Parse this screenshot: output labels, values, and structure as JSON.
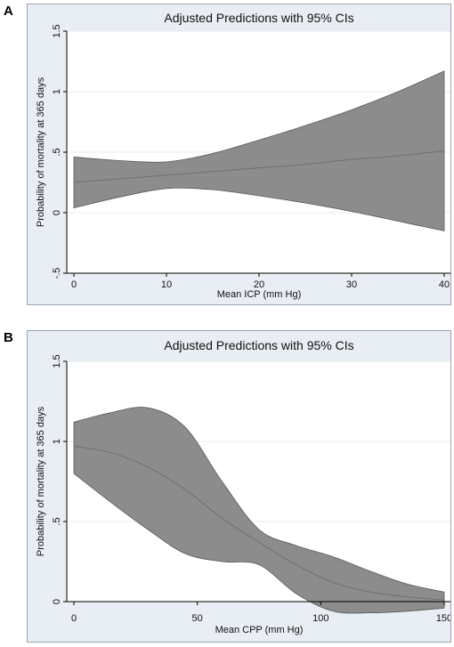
{
  "panels": [
    {
      "letter": "A"
    },
    {
      "letter": "B"
    }
  ],
  "chart_data": [
    {
      "type": "line",
      "title": "Adjusted Predictions with 95% CIs",
      "xlabel": "Mean ICP (mm Hg)",
      "ylabel": "Probability of mortality at 365 days",
      "xlim": [
        0,
        40
      ],
      "ylim": [
        -0.5,
        1.5
      ],
      "xticks": [
        0,
        10,
        20,
        30,
        40
      ],
      "xtick_labels": [
        "0",
        "10",
        "20",
        "30",
        "40"
      ],
      "yticks": [
        -0.5,
        0,
        0.5,
        1,
        1.5
      ],
      "ytick_labels": [
        "-.5",
        "0",
        ".5",
        "1",
        "1.5"
      ],
      "grid": true,
      "series": [
        {
          "x": [
            0,
            5,
            10,
            15,
            20,
            25,
            30,
            35,
            40
          ],
          "y": [
            0.25,
            0.28,
            0.31,
            0.34,
            0.37,
            0.4,
            0.44,
            0.47,
            0.51
          ],
          "lower": [
            0.04,
            0.13,
            0.2,
            0.19,
            0.14,
            0.08,
            0.01,
            -0.07,
            -0.15
          ],
          "upper": [
            0.46,
            0.43,
            0.42,
            0.49,
            0.6,
            0.72,
            0.85,
            1.0,
            1.17
          ]
        }
      ],
      "colors": {
        "band": "#8c8c8c",
        "line": "#6e6e6e",
        "background": "#ffffff",
        "grid": "#e6ecf1"
      }
    },
    {
      "type": "line",
      "title": "Adjusted Predictions with 95% CIs",
      "xlabel": "Mean CPP (mm Hg)",
      "ylabel": "Probability of mortality at 365 days",
      "xlim": [
        0,
        150
      ],
      "ylim": [
        0,
        1.5
      ],
      "xticks": [
        0,
        50,
        100,
        150
      ],
      "xtick_labels": [
        "0",
        "50",
        "100",
        "150"
      ],
      "yticks": [
        0,
        0.5,
        1,
        1.5
      ],
      "ytick_labels": [
        "0",
        ".5",
        "1",
        "1.5"
      ],
      "grid": true,
      "series": [
        {
          "x": [
            0,
            15,
            30,
            45,
            60,
            75,
            90,
            105,
            120,
            135,
            150
          ],
          "y": [
            0.97,
            0.93,
            0.84,
            0.7,
            0.52,
            0.37,
            0.23,
            0.12,
            0.06,
            0.03,
            0.01
          ],
          "lower": [
            0.8,
            0.62,
            0.45,
            0.3,
            0.25,
            0.23,
            0.05,
            -0.06,
            -0.07,
            -0.06,
            -0.04
          ],
          "upper": [
            1.12,
            1.18,
            1.21,
            1.09,
            0.75,
            0.45,
            0.35,
            0.28,
            0.19,
            0.11,
            0.06
          ]
        }
      ],
      "colors": {
        "band": "#8c8c8c",
        "line": "#6e6e6e",
        "background": "#ffffff",
        "grid": "#e6ecf1"
      }
    }
  ]
}
